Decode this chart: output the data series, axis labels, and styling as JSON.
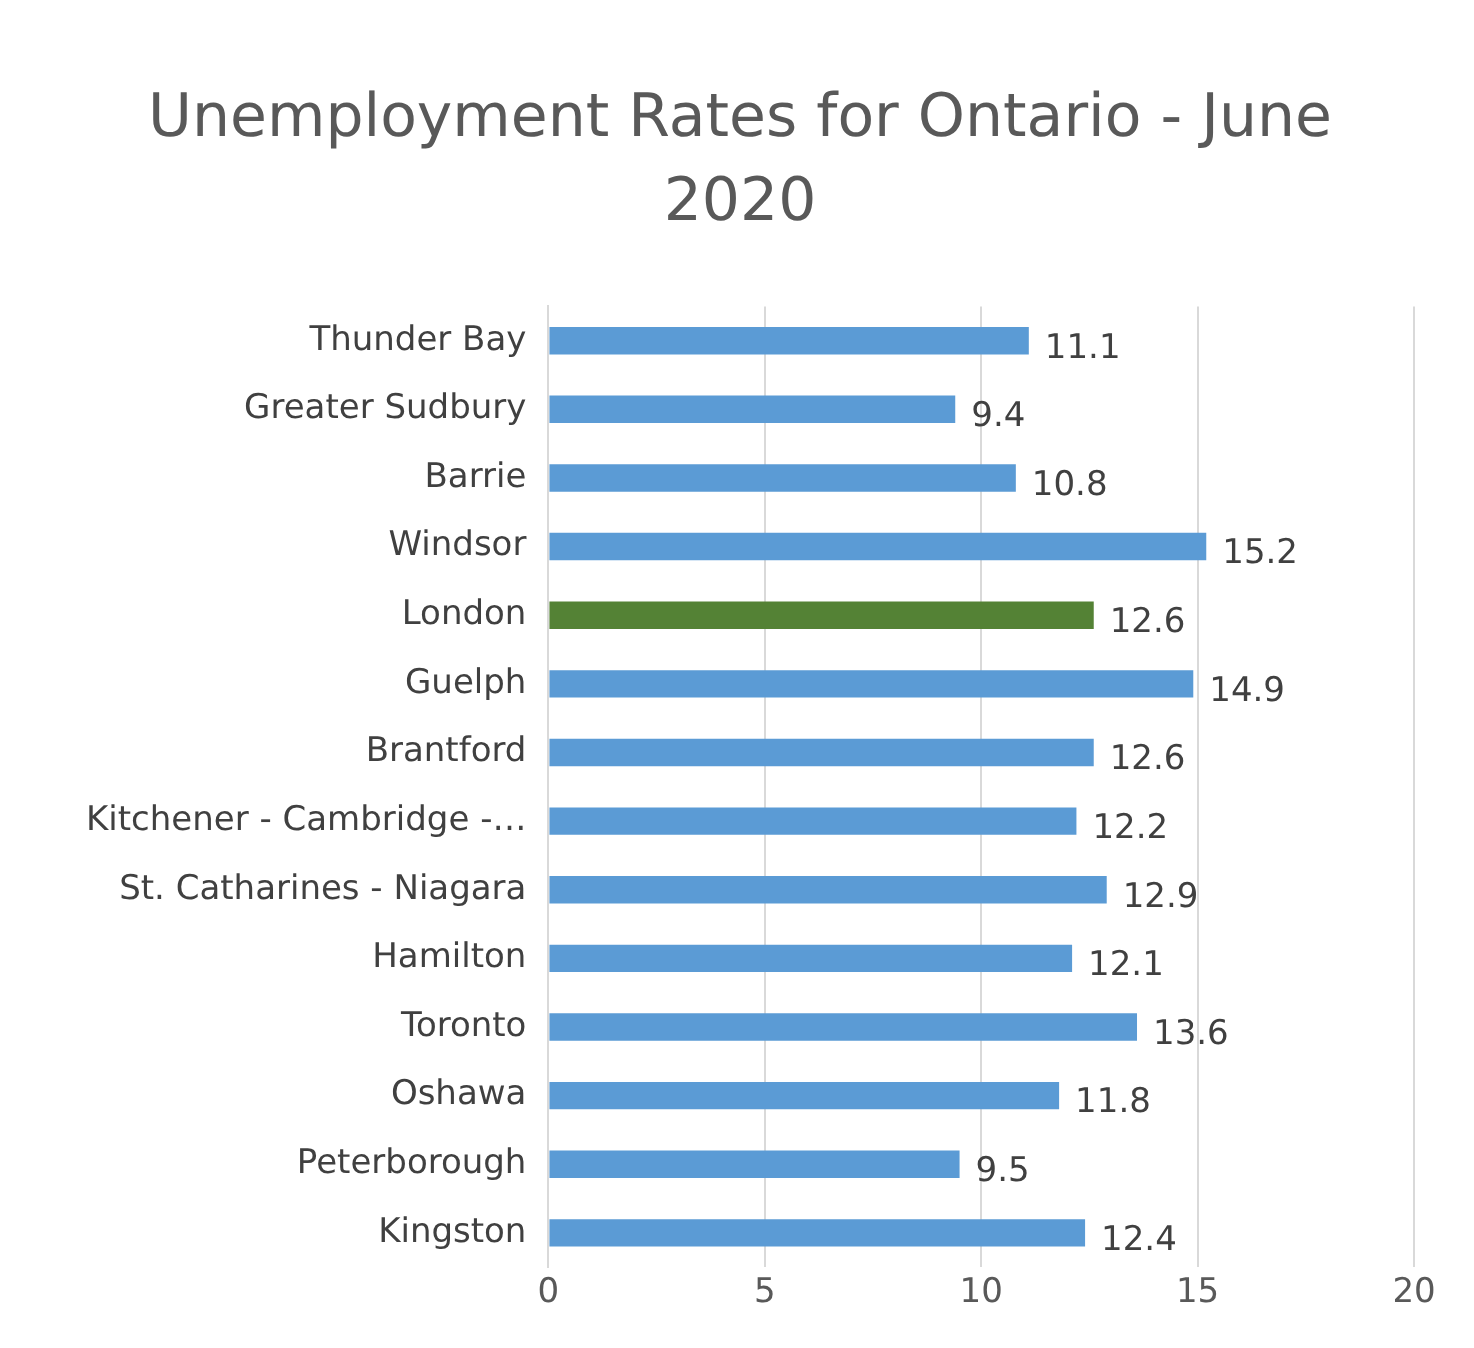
{
  "chart_data": {
    "type": "bar",
    "orientation": "horizontal",
    "title": "Unemployment Rates for Ontario - June 2020",
    "categories": [
      "Thunder Bay",
      "Greater Sudbury",
      "Barrie",
      "Windsor",
      "London",
      "Guelph",
      "Brantford",
      "Kitchener - Cambridge -…",
      "St. Catharines - Niagara",
      "Hamilton",
      "Toronto",
      "Oshawa",
      "Peterborough",
      "Kingston"
    ],
    "values": [
      11.1,
      9.4,
      10.8,
      15.2,
      12.6,
      14.9,
      12.6,
      12.2,
      12.9,
      12.1,
      13.6,
      11.8,
      9.5,
      12.4
    ],
    "colors": [
      "#5b9bd5",
      "#5b9bd5",
      "#5b9bd5",
      "#5b9bd5",
      "#548235",
      "#5b9bd5",
      "#5b9bd5",
      "#5b9bd5",
      "#5b9bd5",
      "#5b9bd5",
      "#5b9bd5",
      "#5b9bd5",
      "#5b9bd5",
      "#5b9bd5"
    ],
    "xlim": [
      0,
      20
    ],
    "xticks": [
      0,
      5,
      10,
      15,
      20
    ],
    "grid": "x",
    "data_labels": true
  }
}
